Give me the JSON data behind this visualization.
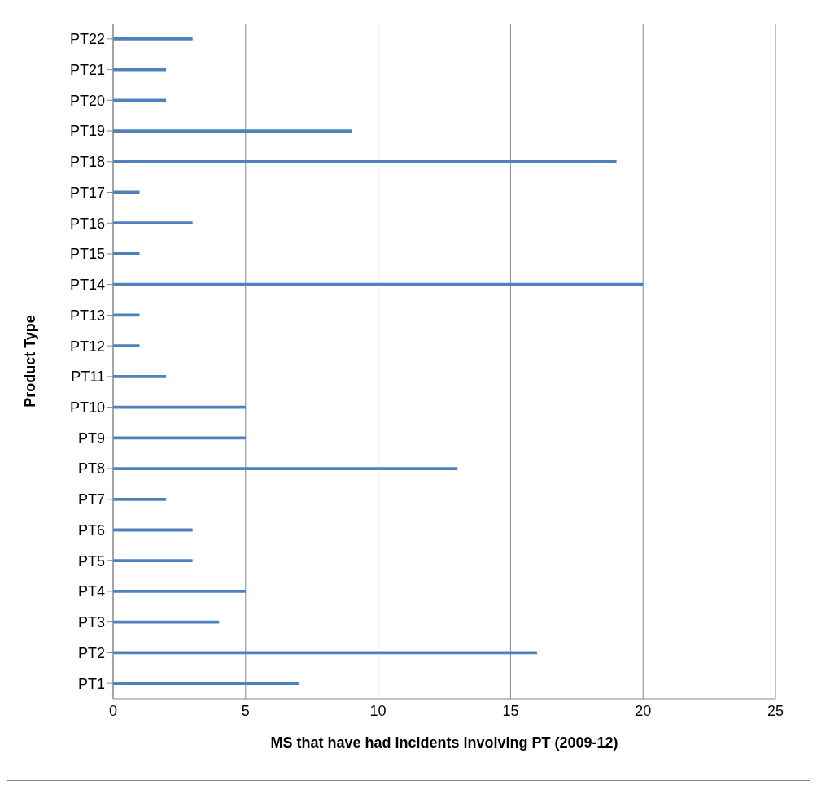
{
  "chart_data": {
    "type": "bar",
    "orientation": "horizontal",
    "xlabel": "MS that have had incidents involving PT (2009-12)",
    "ylabel": "Product Type",
    "categories": [
      "PT22",
      "PT21",
      "PT20",
      "PT19",
      "PT18",
      "PT17",
      "PT16",
      "PT15",
      "PT14",
      "PT13",
      "PT12",
      "PT11",
      "PT10",
      "PT9",
      "PT8",
      "PT7",
      "PT6",
      "PT5",
      "PT4",
      "PT3",
      "PT2",
      "PT1"
    ],
    "values": [
      3,
      2,
      2,
      9,
      19,
      1,
      3,
      1,
      20,
      1,
      1,
      2,
      5,
      5,
      13,
      2,
      3,
      3,
      5,
      4,
      16,
      7
    ],
    "color": "#4f81bd",
    "xlim": [
      0,
      25
    ],
    "xticks": [
      0,
      5,
      10,
      15,
      20,
      25
    ],
    "grid": "x"
  }
}
